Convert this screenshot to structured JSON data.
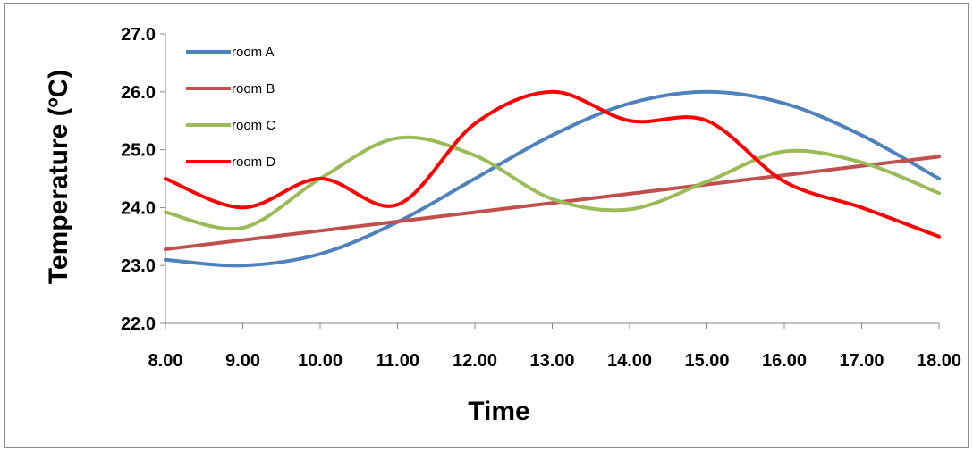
{
  "chart_data": {
    "type": "line",
    "title": "",
    "xlabel": "Time",
    "ylabel": "Temperature (ºC)",
    "x": [
      8,
      9,
      10,
      11,
      12,
      13,
      14,
      15,
      16,
      17,
      18
    ],
    "xtick_labels": [
      "8.00",
      "9.00",
      "10.00",
      "11.00",
      "12.00",
      "13.00",
      "14.00",
      "15.00",
      "16.00",
      "17.00",
      "18.00"
    ],
    "ylim": [
      22,
      27
    ],
    "ytick_labels": [
      "22.0",
      "23.0",
      "24.0",
      "25.0",
      "26.0",
      "27.0"
    ],
    "ytick_values": [
      22,
      23,
      24,
      25,
      26,
      27
    ],
    "grid": false,
    "legend_position": "top-left",
    "series": [
      {
        "name": "room A",
        "color": "#4F81BD",
        "values": [
          23.1,
          23.0,
          23.2,
          23.75,
          24.5,
          25.25,
          25.8,
          26.0,
          25.8,
          25.25,
          24.5
        ]
      },
      {
        "name": "room B",
        "color": "#C0504D",
        "values": [
          23.28,
          23.44,
          23.6,
          23.76,
          23.92,
          24.08,
          24.24,
          24.4,
          24.56,
          24.72,
          24.88
        ]
      },
      {
        "name": "room C",
        "color": "#9BBB59",
        "values": [
          23.92,
          23.65,
          24.5,
          25.2,
          24.9,
          24.15,
          23.97,
          24.45,
          24.97,
          24.78,
          24.25
        ]
      },
      {
        "name": "room D",
        "color": "#FF0000",
        "values": [
          24.5,
          24.0,
          24.5,
          24.05,
          25.45,
          26.0,
          25.5,
          25.5,
          24.45,
          24.0,
          23.5
        ]
      }
    ]
  }
}
